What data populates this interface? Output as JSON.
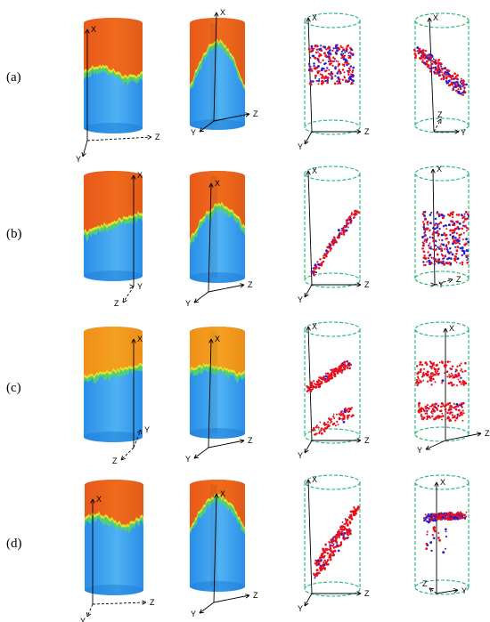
{
  "rows": [
    {
      "label": "(a)",
      "contours": [
        {
          "axes": [
            "X",
            "Y",
            "Z"
          ]
        },
        {
          "axes": [
            "X",
            "Y",
            "Z"
          ]
        }
      ],
      "clouds": [
        {
          "axes": [
            "X",
            "Y",
            "Z"
          ]
        },
        {
          "axes": [
            "X",
            "Y",
            "Z"
          ]
        }
      ]
    },
    {
      "label": "(b)",
      "contours": [
        {
          "axes": [
            "X",
            "Y",
            "Z"
          ]
        },
        {
          "axes": [
            "X",
            "Y",
            "Z"
          ]
        }
      ],
      "clouds": [
        {
          "axes": [
            "X",
            "Y",
            "Z"
          ]
        },
        {
          "axes": [
            "X",
            "Y",
            "Z"
          ]
        }
      ]
    },
    {
      "label": "(c)",
      "contours": [
        {
          "axes": [
            "X",
            "Y",
            "Z"
          ]
        },
        {
          "axes": [
            "X",
            "Y",
            "Z"
          ]
        }
      ],
      "clouds": [
        {
          "axes": [
            "X",
            "Y",
            "Z"
          ]
        },
        {
          "axes": [
            "X",
            "Y",
            "Z"
          ]
        }
      ]
    },
    {
      "label": "(d)",
      "contours": [
        {
          "axes": [
            "X",
            "Y",
            "Z"
          ]
        },
        {
          "axes": [
            "X",
            "Y",
            "Z"
          ]
        }
      ],
      "clouds": [
        {
          "axes": [
            "X",
            "Y",
            "Z"
          ]
        },
        {
          "axes": [
            "X",
            "Y",
            "Z"
          ]
        }
      ]
    }
  ],
  "colors": {
    "hot": "#f06a1c",
    "hot_alt": "#f3a020",
    "yellow": "#e8e020",
    "green": "#52d36a",
    "cold": "#2a8ee8",
    "cold_light": "#4fb2f2",
    "point_red": "#e8101c",
    "point_blue": "#2020d8",
    "cloud_outline": "#22b573",
    "axis": "#000000"
  }
}
